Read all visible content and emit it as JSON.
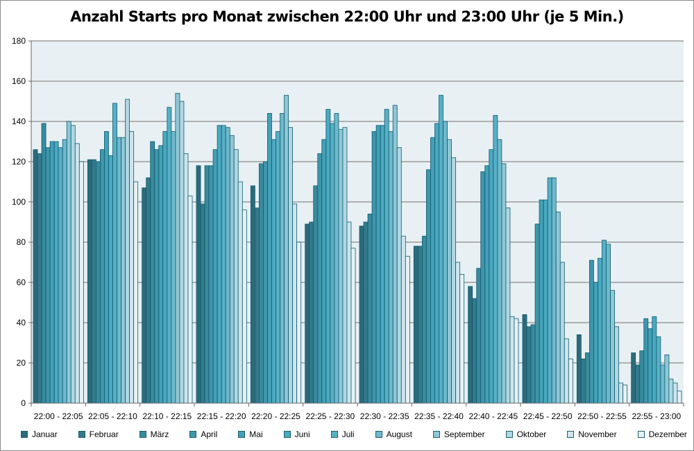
{
  "chart_data": {
    "type": "bar",
    "title": "Anzahl Starts pro Monat zwischen 22:00 Uhr und 23:00 Uhr (je 5 Min.)",
    "xlabel": "",
    "ylabel": "",
    "ylim": [
      0,
      180
    ],
    "yticks": [
      0,
      20,
      40,
      60,
      80,
      100,
      120,
      140,
      160,
      180
    ],
    "grid": true,
    "legend_position": "bottom",
    "categories": [
      "22:00 - 22:05",
      "22:05 - 22:10",
      "22:10 - 22:15",
      "22:15 - 22:20",
      "22:20 - 22:25",
      "22:25 - 22:30",
      "22:30 - 22:35",
      "22:35 - 22:40",
      "22:40 - 22:45",
      "22:45 - 22:50",
      "22:50 - 22:55",
      "22:55 - 23:00"
    ],
    "series": [
      {
        "name": "Januar",
        "color": "#2c6b7b",
        "values": [
          126,
          121,
          107,
          118,
          108,
          89,
          88,
          78,
          58,
          44,
          34,
          25
        ]
      },
      {
        "name": "Februar",
        "color": "#337a8b",
        "values": [
          124,
          121,
          112,
          99,
          97,
          90,
          90,
          78,
          52,
          38,
          22,
          19
        ]
      },
      {
        "name": "März",
        "color": "#3a8a9e",
        "values": [
          139,
          120,
          130,
          118,
          119,
          108,
          94,
          83,
          67,
          39,
          25,
          26
        ]
      },
      {
        "name": "April",
        "color": "#3f96ab",
        "values": [
          127,
          126,
          126,
          118,
          120,
          124,
          135,
          116,
          115,
          89,
          71,
          42
        ]
      },
      {
        "name": "Mai",
        "color": "#44a0b6",
        "values": [
          130,
          135,
          128,
          126,
          144,
          131,
          138,
          132,
          118,
          101,
          60,
          37
        ]
      },
      {
        "name": "Juni",
        "color": "#4aa9c0",
        "values": [
          130,
          123,
          135,
          138,
          131,
          146,
          138,
          139,
          126,
          101,
          72,
          43
        ]
      },
      {
        "name": "Juli",
        "color": "#58b0c6",
        "values": [
          127,
          149,
          147,
          138,
          135,
          139,
          146,
          153,
          143,
          112,
          81,
          33
        ]
      },
      {
        "name": "August",
        "color": "#6fb9cc",
        "values": [
          131,
          132,
          135,
          137,
          144,
          144,
          135,
          140,
          131,
          112,
          79,
          19
        ]
      },
      {
        "name": "September",
        "color": "#8ec7d6",
        "values": [
          140,
          132,
          154,
          133,
          153,
          136,
          148,
          131,
          119,
          95,
          56,
          24
        ]
      },
      {
        "name": "Oktober",
        "color": "#b0d7e2",
        "values": [
          138,
          151,
          150,
          126,
          137,
          137,
          127,
          122,
          97,
          70,
          38,
          12
        ]
      },
      {
        "name": "November",
        "color": "#cde5ec",
        "values": [
          129,
          135,
          124,
          110,
          99,
          90,
          83,
          70,
          43,
          32,
          10,
          10
        ]
      },
      {
        "name": "Dezember",
        "color": "#e6f1f5",
        "values": [
          120,
          110,
          103,
          96,
          80,
          77,
          73,
          64,
          42,
          22,
          9,
          6
        ]
      }
    ]
  }
}
